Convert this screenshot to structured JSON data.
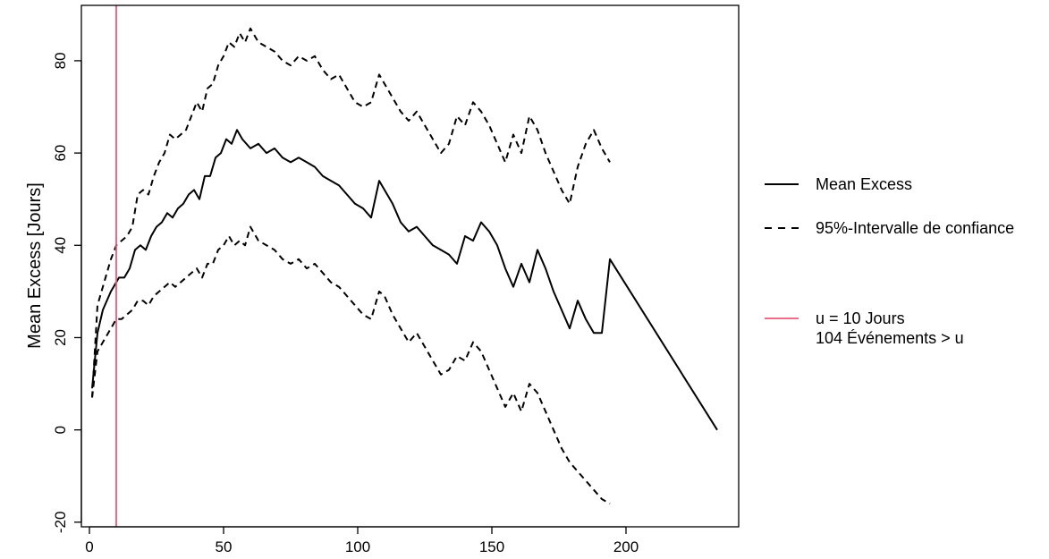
{
  "chart_data": {
    "type": "line",
    "title": "",
    "xlabel": "",
    "ylabel": "Mean Excess [Jours]",
    "xlim": [
      -3,
      242
    ],
    "ylim": [
      -21,
      92
    ],
    "x_ticks": [
      0,
      50,
      100,
      150,
      200
    ],
    "y_ticks": [
      -20,
      0,
      20,
      40,
      60,
      80
    ],
    "grid": false,
    "legend_position": "right",
    "series": [
      {
        "name": "Mean Excess",
        "style": "solid",
        "color": "#000000",
        "x": [
          1,
          3,
          5,
          8,
          10,
          11,
          13,
          15,
          17,
          19,
          21,
          23,
          25,
          27,
          29,
          31,
          33,
          35,
          37,
          39,
          41,
          43,
          45,
          47,
          49,
          51,
          53,
          55,
          57,
          60,
          63,
          66,
          69,
          72,
          75,
          78,
          81,
          84,
          87,
          90,
          93,
          96,
          99,
          102,
          105,
          108,
          110,
          113,
          116,
          119,
          122,
          125,
          128,
          131,
          134,
          137,
          140,
          143,
          146,
          149,
          152,
          155,
          158,
          161,
          164,
          167,
          170,
          173,
          176,
          179,
          182,
          185,
          188,
          191,
          194,
          234
        ],
        "values": [
          9,
          21,
          26,
          30,
          32,
          33,
          33,
          35,
          39,
          40,
          39,
          42,
          44,
          45,
          47,
          46,
          48,
          49,
          51,
          52,
          50,
          55,
          55,
          59,
          60,
          63,
          62,
          65,
          63,
          61,
          62,
          60,
          61,
          59,
          58,
          59,
          58,
          57,
          55,
          54,
          53,
          51,
          49,
          48,
          46,
          54,
          52,
          49,
          45,
          43,
          44,
          42,
          40,
          39,
          38,
          36,
          42,
          41,
          45,
          43,
          40,
          35,
          31,
          36,
          32,
          39,
          35,
          30,
          26,
          22,
          28,
          24,
          21,
          21,
          37,
          0
        ]
      },
      {
        "name": "95%-Intervalle de confiance",
        "style": "dashed",
        "color": "#000000",
        "x": [
          1,
          3,
          5,
          8,
          10,
          12,
          14,
          16,
          18,
          20,
          22,
          24,
          26,
          28,
          30,
          32,
          34,
          36,
          38,
          40,
          42,
          44,
          46,
          48,
          50,
          52,
          54,
          56,
          58,
          60,
          63,
          66,
          69,
          72,
          75,
          78,
          81,
          84,
          87,
          90,
          93,
          96,
          99,
          102,
          105,
          108,
          110,
          113,
          116,
          119,
          122,
          125,
          128,
          131,
          134,
          137,
          140,
          143,
          146,
          149,
          152,
          155,
          158,
          161,
          164,
          167,
          170,
          173,
          176,
          179,
          182,
          185,
          188,
          191,
          194
        ],
        "values": [
          7,
          27,
          31,
          37,
          40,
          41,
          42,
          44,
          51,
          52,
          51,
          55,
          58,
          60,
          64,
          63,
          64,
          65,
          68,
          71,
          69,
          74,
          75,
          79,
          81,
          84,
          83,
          86,
          84,
          87,
          84,
          83,
          82,
          80,
          79,
          81,
          80,
          81,
          78,
          76,
          77,
          74,
          71,
          70,
          71,
          77,
          75,
          72,
          69,
          67,
          69,
          66,
          63,
          60,
          62,
          68,
          66,
          71,
          69,
          66,
          62,
          58,
          64,
          60,
          68,
          65,
          60,
          56,
          52,
          49,
          57,
          62,
          65,
          61,
          58
        ]
      },
      {
        "name": "95%-Intervalle de confiance (lower)",
        "style": "dashed",
        "color": "#000000",
        "x": [
          1,
          3,
          5,
          8,
          10,
          12,
          14,
          16,
          18,
          20,
          22,
          24,
          26,
          28,
          30,
          32,
          34,
          36,
          38,
          40,
          42,
          44,
          46,
          48,
          50,
          52,
          54,
          56,
          58,
          60,
          63,
          66,
          69,
          72,
          75,
          78,
          81,
          84,
          87,
          90,
          93,
          96,
          99,
          102,
          105,
          108,
          110,
          113,
          116,
          119,
          122,
          125,
          128,
          131,
          134,
          137,
          140,
          143,
          146,
          149,
          152,
          155,
          158,
          161,
          164,
          167,
          170,
          173,
          176,
          179,
          182,
          185,
          188,
          191,
          194
        ],
        "values": [
          7,
          17,
          19,
          22,
          24,
          24,
          25,
          26,
          28,
          28,
          27,
          29,
          30,
          31,
          32,
          31,
          32,
          33,
          34,
          35,
          33,
          36,
          36,
          39,
          40,
          42,
          40,
          41,
          40,
          44,
          41,
          40,
          39,
          37,
          36,
          37,
          35,
          36,
          34,
          32,
          31,
          29,
          27,
          25,
          24,
          30,
          29,
          25,
          22,
          19,
          21,
          18,
          15,
          12,
          13,
          16,
          15,
          19,
          17,
          13,
          9,
          5,
          8,
          4,
          10,
          8,
          4,
          0,
          -4,
          -7,
          -9,
          -11,
          -13,
          -15,
          -16
        ]
      }
    ],
    "threshold": {
      "x": 10,
      "color": "#e8597a"
    },
    "legend": [
      {
        "key": "mean",
        "style": "solid",
        "color": "#000000",
        "lines": [
          "Mean Excess"
        ]
      },
      {
        "key": "ci",
        "style": "dashed",
        "color": "#000000",
        "lines": [
          "95%-Intervalle de confiance"
        ]
      },
      {
        "key": "threshold",
        "style": "solid",
        "color": "#e8597a",
        "lines": [
          "u =  10 Jours",
          "104 Événements > u"
        ]
      }
    ]
  }
}
